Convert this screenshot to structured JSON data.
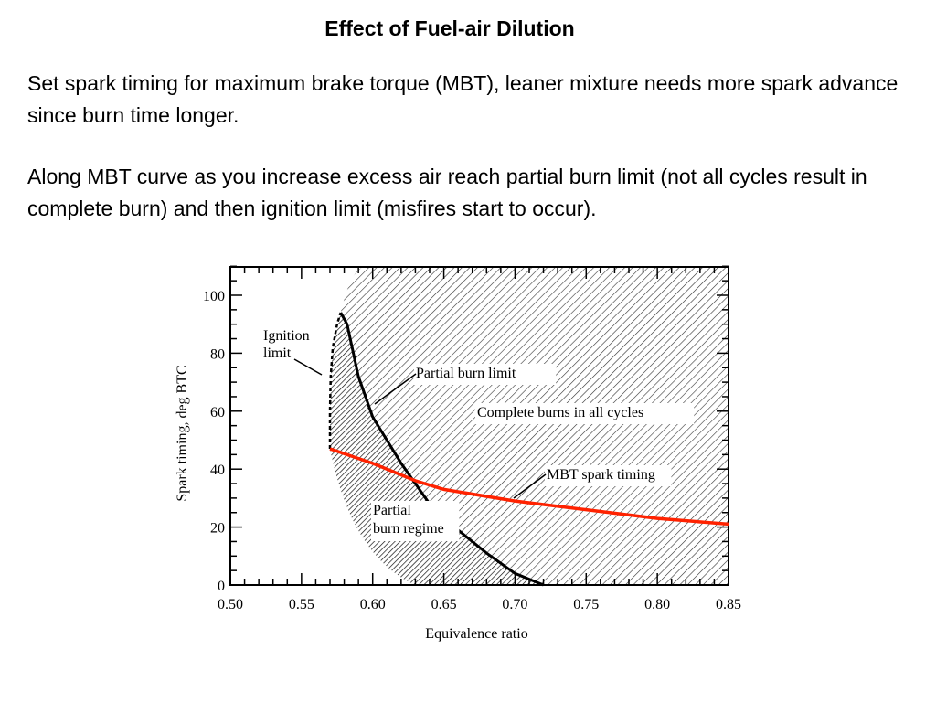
{
  "slide": {
    "title": "Effect of Fuel-air Dilution",
    "paragraphs": [
      "Set spark timing for maximum brake torque (MBT), leaner mixture needs more spark advance since burn time longer.",
      "Along MBT curve as you increase excess air reach partial burn limit (not all cycles result in complete burn) and then ignition limit (misfires start to occur)."
    ]
  },
  "chart_data": {
    "type": "line",
    "title": "",
    "xlabel": "Equivalence ratio",
    "ylabel": "Spark timing, deg BTC",
    "xlim": [
      0.5,
      0.85
    ],
    "ylim": [
      0,
      110
    ],
    "x_ticks": [
      "0.50",
      "0.55",
      "0.60",
      "0.65",
      "0.70",
      "0.75",
      "0.80",
      "0.85"
    ],
    "y_ticks": [
      "0",
      "20",
      "40",
      "60",
      "80",
      "100"
    ],
    "grid": false,
    "series": [
      {
        "name": "MBT spark timing",
        "color": "#ff2200",
        "x": [
          0.57,
          0.6,
          0.63,
          0.65,
          0.7,
          0.75,
          0.8,
          0.85
        ],
        "y": [
          47,
          42,
          36,
          33,
          29,
          26,
          23,
          21
        ]
      },
      {
        "name": "Partial burn limit",
        "color": "#000000",
        "x": [
          0.5775,
          0.582,
          0.59,
          0.6,
          0.62,
          0.64,
          0.66,
          0.68,
          0.7,
          0.72
        ],
        "y": [
          94,
          90,
          72,
          58,
          42,
          28,
          19,
          11,
          4,
          0
        ]
      },
      {
        "name": "Ignition limit",
        "color": "#000000",
        "x": [
          0.57,
          0.57,
          0.5705,
          0.572,
          0.575,
          0.5775
        ],
        "y": [
          47,
          60,
          72,
          82,
          90,
          94
        ]
      }
    ],
    "annotations": [
      {
        "text_lines": [
          "Ignition",
          "limit"
        ]
      },
      {
        "text_lines": [
          "Partial burn limit"
        ]
      },
      {
        "text_lines": [
          "Complete burns in all cycles"
        ]
      },
      {
        "text_lines": [
          "MBT spark timing"
        ]
      },
      {
        "text_lines": [
          "Partial",
          "burn regime"
        ]
      }
    ]
  }
}
